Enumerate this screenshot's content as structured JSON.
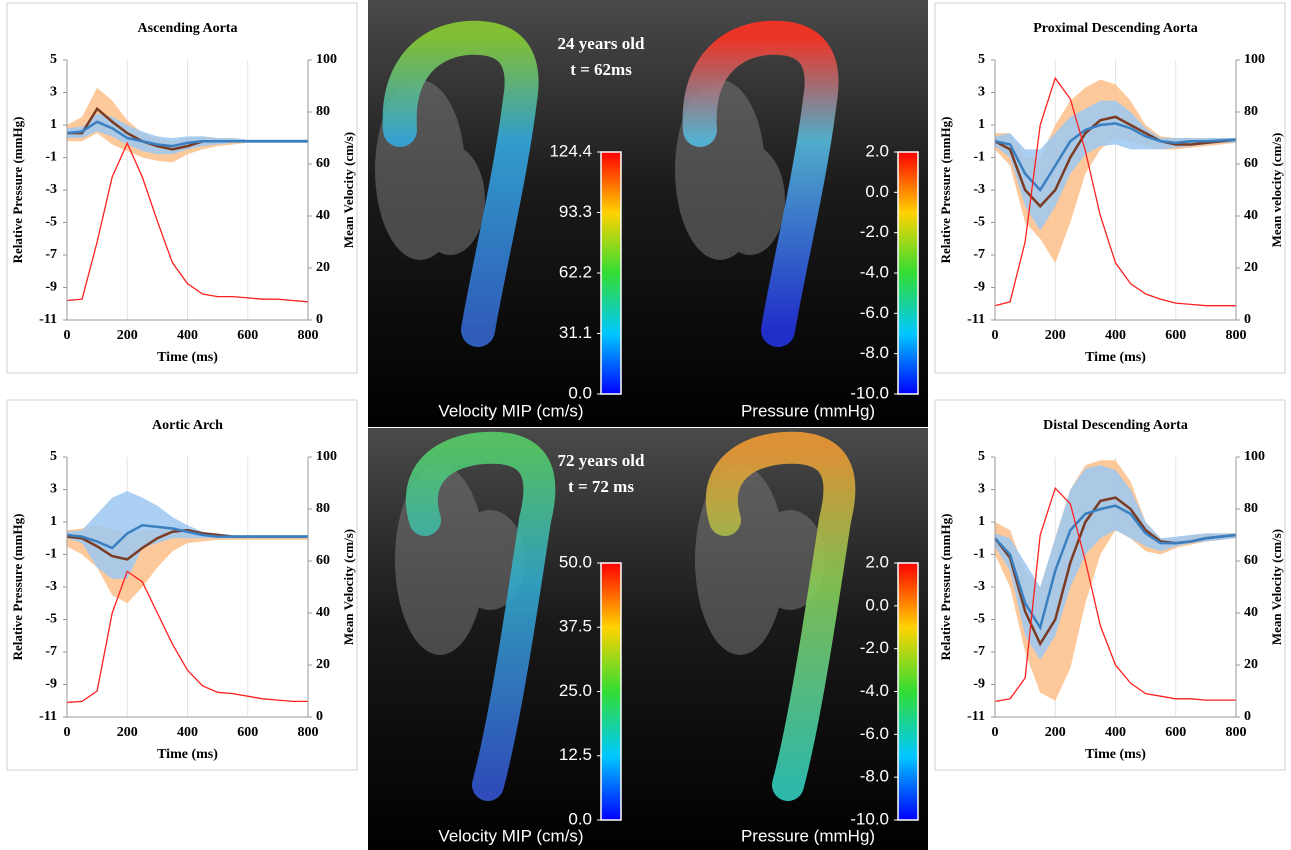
{
  "chart_data": [
    {
      "type": "line",
      "title": "Ascending Aorta",
      "xlabel": "Time (ms)",
      "ylabel": "Relative Pressure (mmHg)",
      "y2label": "Mean Velocity (cm/s)",
      "xlim": [
        0,
        800
      ],
      "xticks": [
        0,
        200,
        400,
        600,
        800
      ],
      "ylim": [
        -11,
        5
      ],
      "yticks": [
        -11,
        -9,
        -7,
        -5,
        -3,
        -1,
        1,
        3,
        5
      ],
      "y2lim": [
        0,
        100
      ],
      "y2ticks": [
        0,
        20,
        40,
        60,
        80,
        100
      ],
      "grid": "x",
      "x": [
        0,
        50,
        100,
        150,
        200,
        250,
        300,
        350,
        400,
        450,
        500,
        550,
        600,
        650,
        700,
        750,
        800
      ],
      "series": [
        {
          "type": "band",
          "color": "#fdc08a",
          "high": [
            1,
            1.5,
            3.3,
            2.5,
            1.3,
            0.5,
            0.2,
            0,
            0.2,
            0.3,
            0.2,
            0.2,
            0.1,
            0.1,
            0.1,
            0.1,
            0.1
          ],
          "low": [
            0,
            0,
            0.5,
            -0.2,
            -0.6,
            -1,
            -1.2,
            -1.3,
            -0.8,
            -0.5,
            -0.3,
            -0.2,
            -0.1,
            -0.1,
            -0.1,
            -0.1,
            -0.1
          ]
        },
        {
          "type": "band",
          "color": "#9cc8f2",
          "high": [
            0.8,
            0.9,
            1.7,
            1.5,
            1,
            0.6,
            0.3,
            0.2,
            0.3,
            0.3,
            0.2,
            0.2,
            0.1,
            0.1,
            0.1,
            0.1,
            0.1
          ],
          "low": [
            0.2,
            0.2,
            0.6,
            0.3,
            -0.2,
            -0.6,
            -0.8,
            -0.8,
            -0.5,
            -0.3,
            -0.2,
            -0.1,
            -0.1,
            -0.1,
            -0.1,
            -0.1,
            -0.1
          ]
        },
        {
          "color": "#7a3b22",
          "values": [
            0.5,
            0.5,
            2,
            1.2,
            0.5,
            0,
            -0.3,
            -0.5,
            -0.3,
            0,
            0,
            0,
            0,
            0,
            0,
            0,
            0
          ]
        },
        {
          "color": "#3a7fc0",
          "values": [
            0.5,
            0.6,
            1.2,
            0.8,
            0.2,
            0,
            -0.2,
            -0.3,
            -0.1,
            0,
            0,
            0,
            0,
            0,
            0,
            0,
            0
          ]
        },
        {
          "color": "#ff2020",
          "axis": "y2",
          "values": [
            7.5,
            8,
            30,
            55,
            68,
            55,
            38,
            22,
            14,
            10,
            9,
            9,
            8.5,
            8,
            8,
            7.5,
            7
          ]
        }
      ]
    },
    {
      "type": "line",
      "title": "Aortic Arch",
      "xlabel": "Time (ms)",
      "ylabel": "Relative Pressure (mmHg)",
      "y2label": "Mean Velocity (cm/s)",
      "xlim": [
        0,
        800
      ],
      "xticks": [
        0,
        200,
        400,
        600,
        800
      ],
      "ylim": [
        -11,
        5
      ],
      "yticks": [
        -11,
        -9,
        -7,
        -5,
        -3,
        -1,
        1,
        3,
        5
      ],
      "y2lim": [
        0,
        100
      ],
      "y2ticks": [
        0,
        20,
        40,
        60,
        80,
        100
      ],
      "grid": "x",
      "x": [
        0,
        50,
        100,
        150,
        200,
        250,
        300,
        350,
        400,
        450,
        500,
        550,
        600,
        650,
        700,
        750,
        800
      ],
      "series": [
        {
          "type": "band",
          "color": "#fdc08a",
          "high": [
            0.5,
            0.6,
            0.8,
            0.6,
            0.2,
            0.5,
            0.5,
            0.7,
            0.6,
            0.4,
            0.2,
            0.2,
            0.1,
            0.1,
            0.1,
            0.1,
            0.1
          ],
          "low": [
            -0.5,
            -1,
            -1.8,
            -3.5,
            -4,
            -3,
            -1.8,
            -0.8,
            -0.3,
            -0.2,
            -0.1,
            -0.1,
            -0.1,
            -0.1,
            -0.1,
            -0.1,
            -0.1
          ]
        },
        {
          "type": "band",
          "color": "#9cc8f2",
          "high": [
            0.4,
            0.5,
            1.5,
            2.5,
            2.9,
            2.5,
            2,
            1.3,
            0.8,
            0.4,
            0.3,
            0.2,
            0.2,
            0.2,
            0.2,
            0.2,
            0.2
          ],
          "low": [
            0,
            -0.3,
            -1.8,
            -2.5,
            -2.5,
            -0.6,
            -0.3,
            0,
            0,
            0,
            0,
            0,
            0,
            0,
            0,
            0,
            0
          ]
        },
        {
          "color": "#7a3b22",
          "values": [
            0.1,
            0,
            -0.5,
            -1.1,
            -1.3,
            -0.6,
            0,
            0.4,
            0.5,
            0.3,
            0.2,
            0.1,
            0.1,
            0.1,
            0.1,
            0.1,
            0.1
          ]
        },
        {
          "color": "#3a7fc0",
          "values": [
            0.2,
            0.1,
            -0.2,
            -0.6,
            0.3,
            0.8,
            0.7,
            0.6,
            0.4,
            0.2,
            0.1,
            0.1,
            0.1,
            0.1,
            0.1,
            0.1,
            0.1
          ]
        },
        {
          "color": "#ff2020",
          "axis": "y2",
          "values": [
            5.6,
            6,
            10,
            40,
            56,
            52,
            40,
            28,
            18,
            12,
            9.5,
            9,
            8,
            7,
            6.5,
            6,
            6
          ]
        }
      ]
    },
    {
      "type": "line",
      "title": "Proximal Descending Aorta",
      "xlabel": "Time (ms)",
      "ylabel": "Relative Pressure (mmHg)",
      "y2label": "Mean velocity (cm/s)",
      "xlim": [
        0,
        800
      ],
      "xticks": [
        0,
        200,
        400,
        600,
        800
      ],
      "ylim": [
        -11,
        5
      ],
      "yticks": [
        -11,
        -9,
        -7,
        -5,
        -3,
        -1,
        1,
        3,
        5
      ],
      "y2lim": [
        0,
        100
      ],
      "y2ticks": [
        0,
        20,
        40,
        60,
        80,
        100
      ],
      "grid": "x",
      "x": [
        0,
        50,
        100,
        150,
        200,
        250,
        300,
        350,
        400,
        450,
        500,
        550,
        600,
        650,
        700,
        750,
        800
      ],
      "series": [
        {
          "type": "band",
          "color": "#fdc08a",
          "high": [
            0.5,
            0.5,
            -1,
            -1,
            1,
            2.5,
            3.3,
            3.8,
            3.5,
            2.5,
            1,
            0.3,
            0.2,
            0.2,
            0.2,
            0.2,
            0.2
          ],
          "low": [
            -0.5,
            -1.5,
            -5,
            -6,
            -7.5,
            -5,
            -2,
            -0.5,
            0.2,
            0,
            -0.3,
            -0.5,
            -0.5,
            -0.4,
            -0.3,
            -0.2,
            -0.1
          ]
        },
        {
          "type": "band",
          "color": "#9cc8f2",
          "high": [
            0.3,
            0.5,
            -0.5,
            -0.5,
            0.5,
            1.5,
            2,
            2.5,
            2.5,
            1.8,
            0.8,
            0.2,
            0.2,
            0.2,
            0.2,
            0.2,
            0.2
          ],
          "low": [
            -0.3,
            -1,
            -4,
            -5.5,
            -4,
            -2,
            -0.8,
            -0.3,
            -0.2,
            -0.5,
            -0.5,
            -0.5,
            -0.4,
            -0.3,
            -0.2,
            -0.1,
            -0.1
          ]
        },
        {
          "color": "#7a3b22",
          "values": [
            0,
            -0.5,
            -3,
            -4,
            -3,
            -1,
            0.5,
            1.3,
            1.5,
            1,
            0.5,
            0,
            -0.2,
            -0.2,
            -0.1,
            0,
            0.1
          ]
        },
        {
          "color": "#3a7fc0",
          "values": [
            0,
            -0.2,
            -2,
            -3,
            -1.5,
            0,
            0.7,
            1,
            1.1,
            0.8,
            0.3,
            0,
            -0.1,
            0,
            0,
            0.05,
            0.1
          ]
        },
        {
          "color": "#ff2020",
          "axis": "y2",
          "values": [
            5.5,
            7,
            30,
            75,
            93,
            85,
            65,
            40,
            22,
            14,
            10,
            8,
            6.5,
            6,
            5.5,
            5.5,
            5.5
          ]
        }
      ]
    },
    {
      "type": "line",
      "title": "Distal Descending Aorta",
      "xlabel": "Time (ms)",
      "ylabel": "Relative Pressure (mmHg)",
      "y2label": "Mean Velocity (cm/s)",
      "xlim": [
        0,
        800
      ],
      "xticks": [
        0,
        200,
        400,
        600,
        800
      ],
      "ylim": [
        -11,
        5
      ],
      "yticks": [
        -11,
        -9,
        -7,
        -5,
        -3,
        -1,
        1,
        3,
        5
      ],
      "y2lim": [
        0,
        100
      ],
      "y2ticks": [
        0,
        20,
        40,
        60,
        80,
        100
      ],
      "grid": "x",
      "x": [
        0,
        50,
        100,
        150,
        200,
        250,
        300,
        350,
        400,
        450,
        500,
        550,
        600,
        650,
        700,
        750,
        800
      ],
      "series": [
        {
          "type": "band",
          "color": "#fdc08a",
          "high": [
            1,
            0.5,
            -2,
            -3,
            0,
            3,
            4.5,
            4.8,
            4.8,
            3.5,
            1,
            0,
            0,
            0.2,
            0.3,
            0.3,
            0.3
          ],
          "low": [
            -1,
            -3,
            -7,
            -9.5,
            -10,
            -8,
            -4,
            -1,
            0.5,
            0,
            -0.8,
            -1,
            -0.6,
            -0.4,
            -0.2,
            -0.1,
            0
          ]
        },
        {
          "type": "band",
          "color": "#9cc8f2",
          "high": [
            0.3,
            0,
            -1.5,
            -3,
            0,
            3,
            4.3,
            4.5,
            4.2,
            3,
            1,
            0,
            0.1,
            0.2,
            0.3,
            0.3,
            0.3
          ],
          "low": [
            -0.5,
            -2,
            -6,
            -7.5,
            -6,
            -3,
            -1,
            0,
            0.5,
            0,
            -0.5,
            -0.8,
            -0.5,
            -0.3,
            -0.2,
            -0.1,
            0
          ]
        },
        {
          "color": "#7a3b22",
          "values": [
            0,
            -1.2,
            -4.5,
            -6.5,
            -5,
            -1.5,
            1,
            2.3,
            2.5,
            1.8,
            0.5,
            -0.2,
            -0.3,
            -0.2,
            0,
            0.1,
            0.2
          ]
        },
        {
          "color": "#3a7fc0",
          "values": [
            0,
            -1,
            -4,
            -5.5,
            -2,
            0.5,
            1.5,
            1.8,
            2,
            1.5,
            0.3,
            -0.3,
            -0.3,
            -0.2,
            0,
            0.1,
            0.2
          ]
        },
        {
          "color": "#ff2020",
          "axis": "y2",
          "values": [
            6,
            7,
            15,
            70,
            88,
            82,
            60,
            35,
            20,
            13,
            9,
            8,
            7,
            7,
            6.5,
            6.5,
            6.5
          ]
        }
      ]
    }
  ],
  "images": [
    {
      "age": "24 years old",
      "time": "t = 62ms",
      "colorbars": [
        {
          "label": "Velocity MIP (cm/s)",
          "lim": [
            0,
            124.4
          ],
          "ticks": [
            {
              "value": 0,
              "label": "0.0"
            },
            31.1,
            62.2,
            93.3,
            124.4
          ]
        },
        {
          "label": "Pressure (mmHg)",
          "lim": [
            -10,
            2
          ],
          "ticks": [
            {
              "value": -10,
              "label": "-10.0"
            },
            {
              "value": -8,
              "label": "-8.0"
            },
            {
              "value": -6,
              "label": "-6.0"
            },
            {
              "value": -4,
              "label": "-4.0"
            },
            {
              "value": -2,
              "label": "-2.0"
            },
            {
              "value": 0,
              "label": "0.0"
            },
            {
              "value": 2,
              "label": "2.0"
            }
          ]
        }
      ]
    },
    {
      "age": "72 years old",
      "time": "t = 72 ms",
      "colorbars": [
        {
          "label": "Velocity MIP (cm/s)",
          "lim": [
            0,
            50
          ],
          "ticks": [
            {
              "value": 0,
              "label": "0.0"
            },
            12.5,
            {
              "value": 25,
              "label": "25.0"
            },
            37.5,
            {
              "value": 50,
              "label": "50.0"
            }
          ]
        },
        {
          "label": "Pressure (mmHg)",
          "lim": [
            -10,
            2
          ],
          "ticks": [
            {
              "value": -10,
              "label": "-10.0"
            },
            {
              "value": -8,
              "label": "-8.0"
            },
            {
              "value": -6,
              "label": "-6.0"
            },
            {
              "value": -4,
              "label": "-4.0"
            },
            {
              "value": -2,
              "label": "-2.0"
            },
            {
              "value": 0,
              "label": "0.0"
            },
            {
              "value": 2,
              "label": "2.0"
            }
          ]
        }
      ]
    }
  ]
}
